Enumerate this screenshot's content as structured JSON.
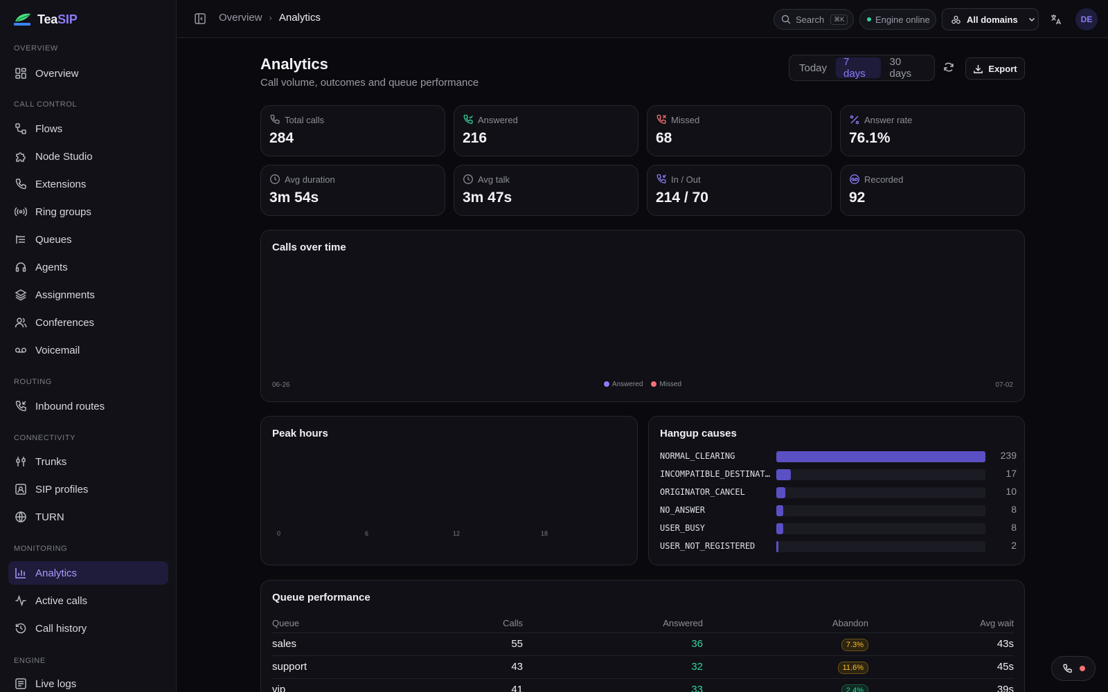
{
  "brand": {
    "name_a": "Tea",
    "name_b": "SIP"
  },
  "sidebar": {
    "sections": [
      {
        "label": "OVERVIEW",
        "items": [
          {
            "label": "Overview",
            "icon": "grid-icon"
          }
        ]
      },
      {
        "label": "CALL CONTROL",
        "items": [
          {
            "label": "Flows",
            "icon": "flow-icon"
          },
          {
            "label": "Node Studio",
            "icon": "puzzle-icon"
          },
          {
            "label": "Extensions",
            "icon": "phone-icon"
          },
          {
            "label": "Ring groups",
            "icon": "radio-icon"
          },
          {
            "label": "Queues",
            "icon": "list-icon"
          },
          {
            "label": "Agents",
            "icon": "headset-icon"
          },
          {
            "label": "Assignments",
            "icon": "layers-icon"
          },
          {
            "label": "Conferences",
            "icon": "users-icon"
          },
          {
            "label": "Voicemail",
            "icon": "voicemail-icon"
          }
        ]
      },
      {
        "label": "ROUTING",
        "items": [
          {
            "label": "Inbound routes",
            "icon": "phone-incoming-icon"
          }
        ]
      },
      {
        "label": "CONNECTIVITY",
        "items": [
          {
            "label": "Trunks",
            "icon": "trunk-icon"
          },
          {
            "label": "SIP profiles",
            "icon": "profile-icon"
          },
          {
            "label": "TURN",
            "icon": "globe-icon"
          }
        ]
      },
      {
        "label": "MONITORING",
        "items": [
          {
            "label": "Analytics",
            "icon": "bar-chart-icon",
            "active": true
          },
          {
            "label": "Active calls",
            "icon": "activity-icon"
          },
          {
            "label": "Call history",
            "icon": "history-icon"
          }
        ]
      },
      {
        "label": "ENGINE",
        "items": [
          {
            "label": "Live logs",
            "icon": "logs-icon"
          }
        ]
      }
    ]
  },
  "topbar": {
    "breadcrumb": [
      "Overview",
      "Analytics"
    ],
    "search_label": "Search",
    "search_shortcut": "⌘K",
    "engine_status": "Engine online",
    "domain": "All domains",
    "avatar": "DE"
  },
  "page": {
    "title": "Analytics",
    "subtitle": "Call volume, outcomes and queue performance",
    "ranges": [
      "Today",
      "7 days",
      "30 days"
    ],
    "active_range": "7 days",
    "export_label": "Export"
  },
  "stats": [
    {
      "label": "Total calls",
      "value": "284",
      "icon": "phone-icon"
    },
    {
      "label": "Answered",
      "value": "216",
      "icon": "phone-answered-icon"
    },
    {
      "label": "Missed",
      "value": "68",
      "icon": "phone-missed-icon"
    },
    {
      "label": "Answer rate",
      "value": "76.1%",
      "icon": "percent-icon"
    },
    {
      "label": "Avg duration",
      "value": "3m 54s",
      "icon": "clock-icon"
    },
    {
      "label": "Avg talk",
      "value": "3m 47s",
      "icon": "clock-icon"
    },
    {
      "label": "In / Out",
      "value": "214 / 70",
      "icon": "phone-incoming-icon"
    },
    {
      "label": "Recorded",
      "value": "92",
      "icon": "record-icon"
    }
  ],
  "calls_over_time": {
    "title": "Calls over time",
    "x_start": "06-26",
    "x_end": "07-02",
    "legend": [
      "Answered",
      "Missed"
    ],
    "colors": {
      "answered": "#8b7cf6",
      "missed": "#f87171"
    }
  },
  "peak_hours": {
    "title": "Peak hours",
    "ticks": [
      "0",
      "6",
      "12",
      "18"
    ]
  },
  "chart_data": {
    "type": "bar",
    "title": "Hangup causes",
    "categories": [
      "NORMAL_CLEARING",
      "INCOMPATIBLE_DESTINATION",
      "ORIGINATOR_CANCEL",
      "NO_ANSWER",
      "USER_BUSY",
      "USER_NOT_REGISTERED"
    ],
    "display_names": [
      "NORMAL_CLEARING",
      "INCOMPATIBLE_DESTINAT…",
      "ORIGINATOR_CANCEL",
      "NO_ANSWER",
      "USER_BUSY",
      "USER_NOT_REGISTERED"
    ],
    "values": [
      239,
      17,
      10,
      8,
      8,
      2
    ],
    "orientation": "horizontal",
    "xlim": [
      0,
      239
    ]
  },
  "queue_performance": {
    "title": "Queue performance",
    "columns": [
      "Queue",
      "Calls",
      "Answered",
      "Abandon",
      "Avg wait"
    ],
    "rows": [
      {
        "queue": "sales",
        "calls": "55",
        "answered": "36",
        "abandon": "7.3%",
        "abandon_level": "warn",
        "avg_wait": "43s"
      },
      {
        "queue": "support",
        "calls": "43",
        "answered": "32",
        "abandon": "11.6%",
        "abandon_level": "warn",
        "avg_wait": "45s"
      },
      {
        "queue": "vip",
        "calls": "41",
        "answered": "33",
        "abandon": "2.4%",
        "abandon_level": "ok",
        "avg_wait": "39s"
      }
    ]
  }
}
